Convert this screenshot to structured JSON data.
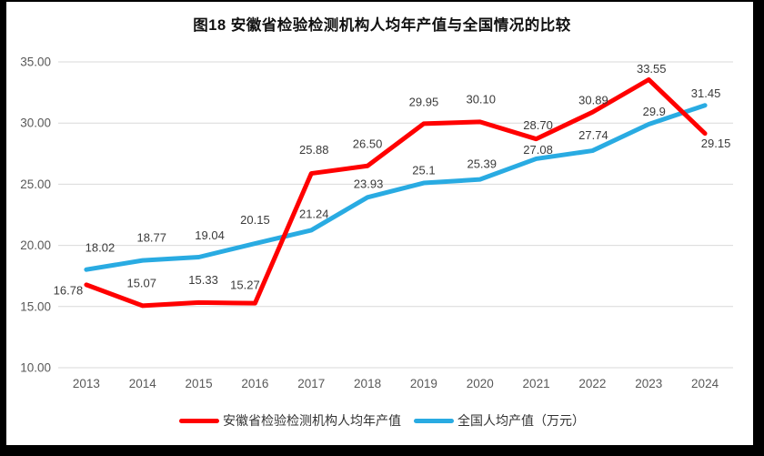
{
  "title": "图18 安徽省检验检测机构人均年产值与全国情况的比较",
  "chart_data": {
    "type": "line",
    "title": "图18 安徽省检验检测机构人均年产值与全国情况的比较",
    "categories": [
      "2013",
      "2014",
      "2015",
      "2016",
      "2017",
      "2018",
      "2019",
      "2020",
      "2021",
      "2022",
      "2023",
      "2024"
    ],
    "series": [
      {
        "name": "安徽省检验检测机构人均年产值",
        "color": "#FF0000",
        "values": [
          16.78,
          15.07,
          15.33,
          15.27,
          25.88,
          26.5,
          29.95,
          30.1,
          28.7,
          30.89,
          33.55,
          29.15
        ],
        "label_texts": [
          "16.78",
          "15.07",
          "15.33",
          "15.27",
          "25.88",
          "26.50",
          "29.95",
          "30.10",
          "28.70",
          "30.89",
          "33.55",
          "29.15"
        ],
        "label_dx": [
          -20,
          -1,
          5,
          -11,
          3,
          0,
          0,
          1,
          2,
          1,
          3,
          12
        ],
        "label_dy": [
          6,
          -25,
          -25,
          -20,
          -26,
          -24,
          -24,
          -25,
          -15,
          -13,
          -12,
          11
        ]
      },
      {
        "name": "全国人均产值（万元）",
        "color": "#29ABE2",
        "values": [
          18.02,
          18.77,
          19.04,
          20.15,
          21.24,
          23.93,
          25.1,
          25.39,
          27.08,
          27.74,
          29.9,
          31.45
        ],
        "label_texts": [
          "18.02",
          "18.77",
          "19.04",
          "20.15",
          "21.24",
          "23.93",
          "25.1",
          "25.39",
          "27.08",
          "27.74",
          "29.9",
          "31.45"
        ],
        "label_dx": [
          15,
          10,
          12,
          0,
          3,
          1,
          0,
          2,
          2,
          1,
          6,
          1
        ],
        "label_dy": [
          -24,
          -25,
          -24,
          -26,
          -18,
          -15,
          -14,
          -17,
          -10,
          -17,
          -14,
          -13
        ]
      }
    ],
    "ylim": [
      10,
      35
    ],
    "ytick_step": 5,
    "ytick_labels": [
      "10.00",
      "15.00",
      "20.00",
      "25.00",
      "30.00",
      "35.00"
    ],
    "xlabel": "",
    "ylabel": "",
    "grid": true,
    "grid_color": "#D9D9D9",
    "legend_position": "bottom"
  },
  "legend": {
    "items": [
      {
        "label": "安徽省检验检测机构人均年产值",
        "color": "#FF0000"
      },
      {
        "label": "全国人均产值（万元）",
        "color": "#29ABE2"
      }
    ]
  }
}
